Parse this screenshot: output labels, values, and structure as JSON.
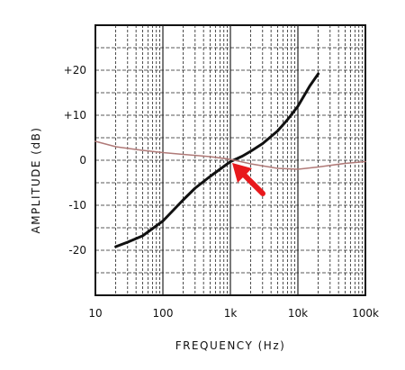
{
  "chart_data": {
    "type": "line",
    "xlabel": "FREQUENCY (Hz)",
    "ylabel": "AMPLITUDE (dB)",
    "x_scale": "log",
    "xlim": [
      10,
      100000
    ],
    "ylim": [
      -30,
      30
    ],
    "x_ticks": [
      {
        "value": 10,
        "label": "10"
      },
      {
        "value": 100,
        "label": "100"
      },
      {
        "value": 1000,
        "label": "1k"
      },
      {
        "value": 10000,
        "label": "10k"
      },
      {
        "value": 100000,
        "label": "100k"
      }
    ],
    "y_ticks": [
      {
        "value": 20,
        "label": "+20"
      },
      {
        "value": 10,
        "label": "+10"
      },
      {
        "value": 0,
        "label": "0"
      },
      {
        "value": -10,
        "label": "-10"
      },
      {
        "value": -20,
        "label": "-20"
      }
    ],
    "grid": true,
    "series": [
      {
        "color": "#111111",
        "points": [
          [
            20,
            -19.2
          ],
          [
            30,
            -18.2
          ],
          [
            50,
            -16.8
          ],
          [
            100,
            -13.5
          ],
          [
            200,
            -8.8
          ],
          [
            300,
            -6.2
          ],
          [
            500,
            -3.6
          ],
          [
            700,
            -2.0
          ],
          [
            1000,
            -0.3
          ],
          [
            1500,
            0.9
          ],
          [
            2000,
            2.0
          ],
          [
            3000,
            3.7
          ],
          [
            5000,
            6.5
          ],
          [
            7000,
            9.0
          ],
          [
            10000,
            12.0
          ],
          [
            15000,
            16.5
          ],
          [
            20000,
            19.2
          ]
        ]
      },
      {
        "color": "#b07a78",
        "points": [
          [
            10,
            4.2
          ],
          [
            20,
            3.0
          ],
          [
            50,
            2.2
          ],
          [
            100,
            1.7
          ],
          [
            200,
            1.3
          ],
          [
            500,
            0.8
          ],
          [
            1000,
            0.2
          ],
          [
            2000,
            -0.8
          ],
          [
            5000,
            -1.8
          ],
          [
            10000,
            -2.0
          ],
          [
            20000,
            -1.5
          ],
          [
            50000,
            -0.7
          ],
          [
            100000,
            -0.3
          ]
        ]
      }
    ],
    "annotations": [
      {
        "type": "arrow",
        "color": "#e8191c",
        "points_to": [
          1000,
          0
        ]
      }
    ]
  }
}
